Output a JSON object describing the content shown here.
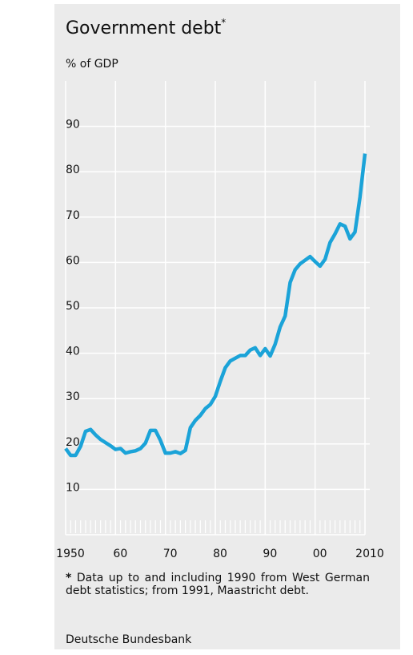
{
  "chart_data": {
    "type": "line",
    "title": "Government debt",
    "title_marker": "*",
    "y_axis_label": "% of GDP",
    "x": [
      1950,
      1951,
      1952,
      1953,
      1954,
      1955,
      1956,
      1957,
      1958,
      1959,
      1960,
      1961,
      1962,
      1963,
      1964,
      1965,
      1966,
      1967,
      1968,
      1969,
      1970,
      1971,
      1972,
      1973,
      1974,
      1975,
      1976,
      1977,
      1978,
      1979,
      1980,
      1981,
      1982,
      1983,
      1984,
      1985,
      1986,
      1987,
      1988,
      1989,
      1990,
      1991,
      1992,
      1993,
      1994,
      1995,
      1996,
      1997,
      1998,
      1999,
      2000,
      2001,
      2002,
      2003,
      2004,
      2005,
      2006,
      2007,
      2008,
      2009,
      2010
    ],
    "series": [
      {
        "name": "Government debt",
        "color": "#1ba3d8",
        "values": [
          19.0,
          17.5,
          17.5,
          19.5,
          22.8,
          23.2,
          22.0,
          21.0,
          20.3,
          19.6,
          18.8,
          19.0,
          18.0,
          18.3,
          18.5,
          19.0,
          20.2,
          23.0,
          23.0,
          20.8,
          18.0,
          18.0,
          18.3,
          17.9,
          18.6,
          23.6,
          25.2,
          26.3,
          27.8,
          28.7,
          30.5,
          33.8,
          36.8,
          38.3,
          38.9,
          39.5,
          39.5,
          40.7,
          41.2,
          39.5,
          41.0,
          39.4,
          42.0,
          45.8,
          48.2,
          55.6,
          58.4,
          59.7,
          60.5,
          61.3,
          60.2,
          59.2,
          60.7,
          64.4,
          66.3,
          68.5,
          68.0,
          65.2,
          66.7,
          74.4,
          84.0
        ]
      }
    ],
    "xlim": [
      1950,
      2010
    ],
    "xticks": [
      1950,
      {
        "value": 1960,
        "label": "60"
      },
      {
        "value": 1970,
        "label": "70"
      },
      {
        "value": 1980,
        "label": "80"
      },
      {
        "value": 1990,
        "label": "90"
      },
      {
        "value": 2000,
        "label": "00"
      },
      2010
    ],
    "ylim": [
      0,
      100
    ],
    "yticks": [
      10,
      20,
      30,
      40,
      50,
      60,
      70,
      80,
      90
    ],
    "grid": true,
    "footnote_marker": "*",
    "footnote": "Data up to and including 1990 from West German debt statistics; from 1991, Maastricht debt.",
    "source": "Deutsche Bundesbank"
  }
}
